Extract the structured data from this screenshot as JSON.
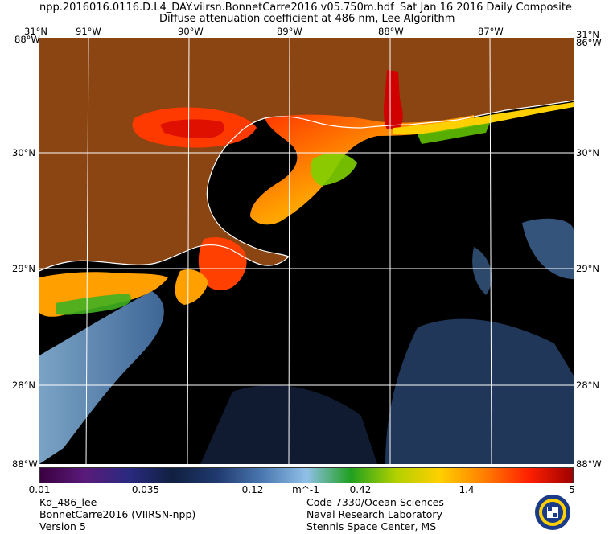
{
  "header": {
    "filename": "npp.2016016.0116.D.L4_DAY.viirsn.BonnetCarre2016.v05.750m.hdf",
    "date": "Sat Jan 16 2016 Daily Composite",
    "subtitle": "Diffuse attenuation coefficient at 486 nm, Lee Algorithm"
  },
  "map": {
    "lon_labels": [
      "91°W",
      "90°W",
      "89°W",
      "88°W",
      "87°W"
    ],
    "lat_labels": [
      "30°N",
      "29°N",
      "28°N"
    ],
    "corner_labels": {
      "top_left": "31°N",
      "top_right": "31°N",
      "top_left_lon": "88°W",
      "top_right_lon": "86°W",
      "bottom_left": "88°W",
      "bottom_right": "88°W"
    },
    "colors": {
      "land": "#8b4513",
      "water_clear": "#000000",
      "grid": "#ffffff",
      "coast": "#ffffff"
    }
  },
  "colorbar": {
    "ticks": [
      "0.01",
      "0.035",
      "0.12",
      "0.42",
      "1.4",
      "5"
    ],
    "unit": "m^-1",
    "stops": [
      "#3a0040",
      "#5a1a7a",
      "#2a2a80",
      "#102040",
      "#203a70",
      "#4a78b0",
      "#90c0e8",
      "#20a020",
      "#b0d000",
      "#ffd000",
      "#ff8000",
      "#ff2000",
      "#a00000"
    ]
  },
  "footer": {
    "left_1": "Kd_486_lee",
    "left_2": "BonnetCarre2016 (VIIRSN-npp)",
    "left_3": "Version 5",
    "right_1": "Code 7330/Ocean Sciences",
    "right_2": "Naval Research Laboratory",
    "right_3": "Stennis Space Center, MS",
    "seal_text": "NRL"
  }
}
